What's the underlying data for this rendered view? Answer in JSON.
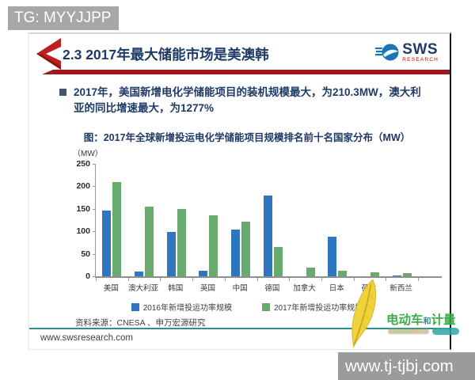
{
  "badge": {
    "text": "TG: MYYJJPP"
  },
  "slide": {
    "header": {
      "title": "2.3 2017年最大储能市场是美澳韩",
      "logo_name": "SWS",
      "logo_sub": "RESEARCH"
    },
    "bullet": {
      "text": "2017年，美国新增电化学储能项目的装机规模最大，为210.3MW，澳大利亚的同比增速最大，为1277%"
    },
    "footer": {
      "source": "资料来源：CNESA 、申万宏源研究",
      "site": "www.swsresearch.com"
    }
  },
  "chart_data": {
    "type": "bar",
    "title": "图：2017年全球新增投运电化学储能项目规模排名前十名国家分布（MW）",
    "ylabel": "（MW）",
    "ylim": [
      0,
      250
    ],
    "yticks": [
      0,
      50,
      100,
      150,
      200,
      250
    ],
    "grid": false,
    "legend_position": "bottom",
    "categories": [
      "美国",
      "澳大利亚",
      "韩国",
      "英国",
      "中国",
      "德国",
      "加拿大",
      "日本",
      "荷兰",
      "新西兰"
    ],
    "series": [
      {
        "name": "2016年新增投运功率规模",
        "color": "#2f76c0",
        "values": [
          147,
          11,
          98,
          13,
          104,
          180,
          0,
          88,
          0,
          2
        ]
      },
      {
        "name": "2017年新增投运功率规模",
        "color": "#69aa6e",
        "values": [
          210.3,
          155,
          150,
          135,
          121,
          65,
          20,
          12,
          9,
          8
        ]
      }
    ]
  },
  "watermark": {
    "brand_left": "电动车",
    "brand_mid": "和",
    "brand_right": "计量",
    "url_bar": "www.tj-tjbj.com"
  },
  "colors": {
    "navy": "#1e3a66",
    "maroon": "#9c1a1e",
    "bright_red": "#be1e20",
    "bar_blue": "#2f76c0",
    "bar_green": "#69aa6e",
    "teal": "#2e8f8c",
    "badge_gray": "#a7a7a7"
  }
}
